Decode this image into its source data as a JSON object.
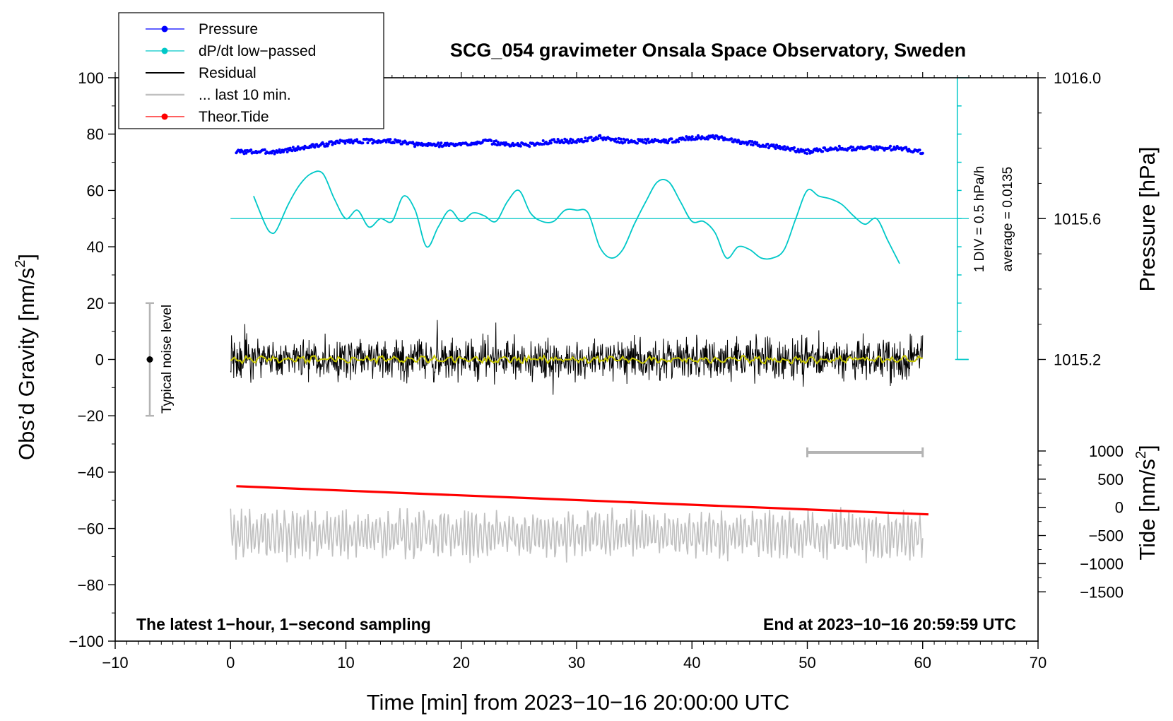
{
  "chart_data": {
    "type": "line",
    "title": "SCG_054 gravimeter Onsala Space Observatory, Sweden",
    "xlabel": "Time [min] from 2023−10−16 20:00:00 UTC",
    "ylabel": "Obs’d Gravity [nm/s²]",
    "ylabel_main": "Obs’d Gravity [nm/s",
    "ylabel_sup": "2",
    "ylabel_close": "]",
    "y2label": "Pressure [hPa]",
    "y3label_main": "Tide [nm/s",
    "y3label_sup": "2",
    "y3label_close": "]",
    "xlim": [
      -10,
      70
    ],
    "ylim": [
      -100,
      100
    ],
    "x_ticks": [
      -10,
      0,
      10,
      20,
      30,
      40,
      50,
      60,
      70
    ],
    "x_tick_labels": [
      "−10",
      "0",
      "10",
      "20",
      "30",
      "40",
      "50",
      "60",
      "70"
    ],
    "y_ticks": [
      -100,
      -80,
      -60,
      -40,
      -20,
      0,
      20,
      40,
      60,
      80,
      100
    ],
    "y_tick_labels": [
      "−100",
      "−80",
      "−60",
      "−40",
      "−20",
      "0",
      "20",
      "40",
      "60",
      "80",
      "100"
    ],
    "pressure_axis": {
      "ticks": [
        1015.2,
        1015.6,
        1016.0
      ],
      "tick_labels": [
        "1015.2",
        "1015.6",
        "1016.0"
      ],
      "left_value": 1015.6,
      "units_per_gravity": 0.008
    },
    "tide_axis": {
      "ticks": [
        -1500,
        -1000,
        -500,
        0,
        500,
        1000
      ],
      "tick_labels": [
        "−1500",
        "−1000",
        "−500",
        "0",
        "500",
        "1000"
      ],
      "gravity_at_zero": -52.5,
      "units_per_gravity": 50
    },
    "legend": {
      "position": "top-left",
      "entries": [
        {
          "label": "Pressure",
          "color": "#0000ff",
          "marker": "dot"
        },
        {
          "label": "dP/dt low−passed",
          "color": "#00c8c8",
          "marker": "dot"
        },
        {
          "label": "Residual",
          "color": "#000000",
          "marker": "none"
        },
        {
          "label": "... last 10 min.",
          "color": "#c0c0c0",
          "marker": "none"
        },
        {
          "label": "Theor.Tide",
          "color": "#ff0000",
          "marker": "dot"
        }
      ]
    },
    "series": [
      {
        "name": "Pressure",
        "color": "#0000ff",
        "axis": "pressure",
        "x": [
          0.5,
          2,
          4,
          6,
          8,
          10,
          12,
          14,
          16,
          18,
          20,
          22,
          24,
          26,
          28,
          30,
          32,
          34,
          36,
          38,
          40,
          42,
          44,
          46,
          48,
          50,
          52,
          54,
          56,
          58,
          60
        ],
        "values": [
          1015.79,
          1015.79,
          1015.79,
          1015.8,
          1015.81,
          1015.82,
          1015.82,
          1015.82,
          1015.81,
          1015.81,
          1015.81,
          1015.82,
          1015.81,
          1015.81,
          1015.82,
          1015.82,
          1015.83,
          1015.82,
          1015.82,
          1015.82,
          1015.83,
          1015.83,
          1015.82,
          1015.81,
          1015.8,
          1015.79,
          1015.8,
          1015.8,
          1015.8,
          1015.8,
          1015.79
        ]
      },
      {
        "name": "dP/dt low−passed",
        "color": "#00c8c8",
        "axis": "gravity",
        "x": [
          2,
          3,
          3.5,
          4,
          5,
          6,
          7,
          8,
          9,
          10,
          11,
          12,
          13,
          14,
          15,
          16,
          17,
          18,
          19,
          20,
          21,
          22,
          23,
          24,
          25,
          26,
          27,
          28,
          29,
          30,
          31,
          32,
          33,
          34,
          35,
          36,
          37,
          38,
          39,
          40,
          41,
          42,
          43,
          44,
          45,
          46,
          47,
          48,
          49,
          50,
          51,
          52,
          53,
          54,
          55,
          56,
          57,
          58
        ],
        "values": [
          58,
          48,
          45,
          46,
          55,
          62,
          66,
          66,
          57,
          50,
          53,
          47,
          50,
          49,
          58,
          53,
          40,
          47,
          53,
          49,
          52,
          51,
          49,
          56,
          60,
          52,
          49,
          49,
          53,
          53,
          52,
          40,
          36,
          39,
          48,
          56,
          63,
          63,
          56,
          49,
          49,
          45,
          36,
          40,
          39,
          36,
          36,
          39,
          50,
          60,
          58,
          57,
          55,
          51,
          48,
          50,
          42,
          34
        ]
      },
      {
        "name": "Residual",
        "color": "#000000",
        "axis": "gravity",
        "x_range": [
          0,
          60
        ],
        "center": 0,
        "spread": [
          -13,
          14
        ]
      },
      {
        "name": "Residual smoothed",
        "color": "#c8c800",
        "axis": "gravity",
        "x_range": [
          0,
          60
        ],
        "center": 0
      },
      {
        "name": "... last 10 min.",
        "color": "#c0c0c0",
        "axis": "gravity",
        "x_range": [
          0,
          60
        ],
        "center": -62,
        "spread": [
          -75,
          -52
        ]
      },
      {
        "name": "Theor.Tide",
        "color": "#ff0000",
        "axis": "gravity",
        "x": [
          0.5,
          60.5
        ],
        "values": [
          -45,
          -55
        ]
      }
    ],
    "annotations": {
      "noise_bar": {
        "label": "Typical noise level",
        "x": -7,
        "y_range": [
          -20,
          20
        ],
        "center": 0
      },
      "ten_min_bar": {
        "x_range": [
          50,
          60
        ],
        "y": -33
      },
      "dpdt_scale": {
        "label_div": "1 DIV = 0.5 hPa/h",
        "label_avg": "average = 0.0135",
        "x": 63,
        "y_range": [
          0,
          100
        ],
        "divisions": 10
      },
      "dpdt_baseline": {
        "x_range": [
          0,
          64
        ],
        "y": 50
      },
      "note_left": "The latest 1−hour, 1−second sampling",
      "note_right": "End at 2023−10−16 20:59:59 UTC"
    }
  }
}
